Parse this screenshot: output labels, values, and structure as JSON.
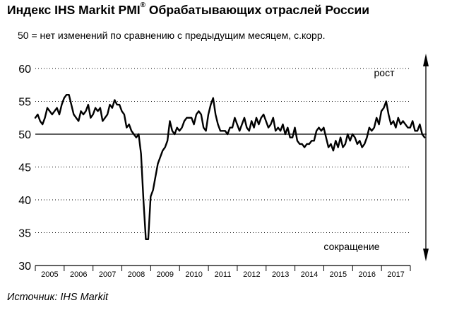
{
  "header": {
    "title": "Индекс IHS Markit PMI",
    "title_sup": "®",
    "title_rest": " Обрабатывающих отраслей России",
    "subtitle": "50 = нет изменений по сравнению с предыдущим месяцем, с.корр."
  },
  "footer": {
    "source": "Источник: IHS Markit"
  },
  "chart_data": {
    "type": "line",
    "title": "Индекс IHS Markit PMI® Обрабатывающих отраслей России",
    "subtitle": "50 = нет изменений по сравнению с предыдущим месяцем, с.корр.",
    "ylim": [
      30,
      60
    ],
    "yticks": [
      30,
      35,
      40,
      45,
      50,
      55,
      60
    ],
    "x_categories": [
      "2005",
      "2006",
      "2007",
      "2008",
      "2009",
      "2010",
      "2011",
      "2012",
      "2013",
      "2014",
      "2015",
      "2016",
      "2017"
    ],
    "grid": "horizontal dotted",
    "reference_line": 50,
    "annotations": {
      "up": "рост",
      "down": "сокращение"
    },
    "series": [
      {
        "color": "#000000",
        "x_start": 2005.0,
        "x_step": 0.0833,
        "values": [
          52.5,
          53.0,
          52.0,
          51.5,
          52.5,
          54.0,
          53.5,
          53.0,
          53.5,
          54.0,
          53.0,
          54.5,
          55.5,
          56.0,
          56.0,
          54.5,
          53.0,
          52.5,
          52.0,
          53.5,
          53.0,
          53.5,
          54.5,
          52.5,
          53.0,
          54.0,
          53.5,
          54.0,
          52.0,
          52.5,
          53.0,
          54.5,
          54.0,
          55.2,
          54.5,
          54.5,
          53.5,
          53.0,
          51.0,
          51.5,
          50.5,
          50.0,
          49.5,
          50.0,
          47.0,
          40.0,
          34.0,
          34.0,
          40.5,
          41.5,
          43.5,
          45.5,
          46.5,
          47.5,
          48.0,
          49.0,
          52.0,
          50.5,
          50.0,
          51.0,
          50.5,
          51.0,
          52.0,
          52.5,
          52.5,
          52.5,
          51.5,
          53.0,
          53.5,
          53.0,
          51.0,
          50.5,
          53.0,
          54.5,
          55.5,
          53.0,
          51.5,
          50.5,
          50.5,
          50.5,
          50.0,
          51.0,
          51.0,
          52.5,
          51.5,
          50.5,
          51.5,
          52.5,
          51.0,
          50.5,
          52.0,
          51.0,
          52.5,
          51.5,
          52.5,
          53.0,
          52.0,
          51.0,
          51.5,
          52.5,
          50.5,
          51.0,
          50.5,
          51.5,
          50.0,
          51.0,
          49.5,
          49.5,
          51.0,
          49.0,
          48.5,
          48.5,
          48.0,
          48.5,
          48.5,
          49.0,
          49.0,
          50.5,
          51.0,
          50.5,
          51.0,
          49.5,
          48.0,
          48.5,
          47.5,
          49.0,
          48.0,
          49.5,
          48.0,
          48.5,
          50.0,
          49.0,
          50.0,
          49.5,
          48.5,
          49.0,
          48.0,
          48.5,
          49.5,
          51.0,
          50.5,
          51.0,
          52.5,
          51.5,
          53.5,
          54.0,
          55.0,
          53.0,
          51.5,
          52.0,
          51.0,
          52.5,
          51.5,
          52.0,
          51.5,
          51.0,
          51.0,
          52.0,
          50.5,
          50.5,
          51.5,
          50.0,
          49.5
        ]
      }
    ]
  }
}
